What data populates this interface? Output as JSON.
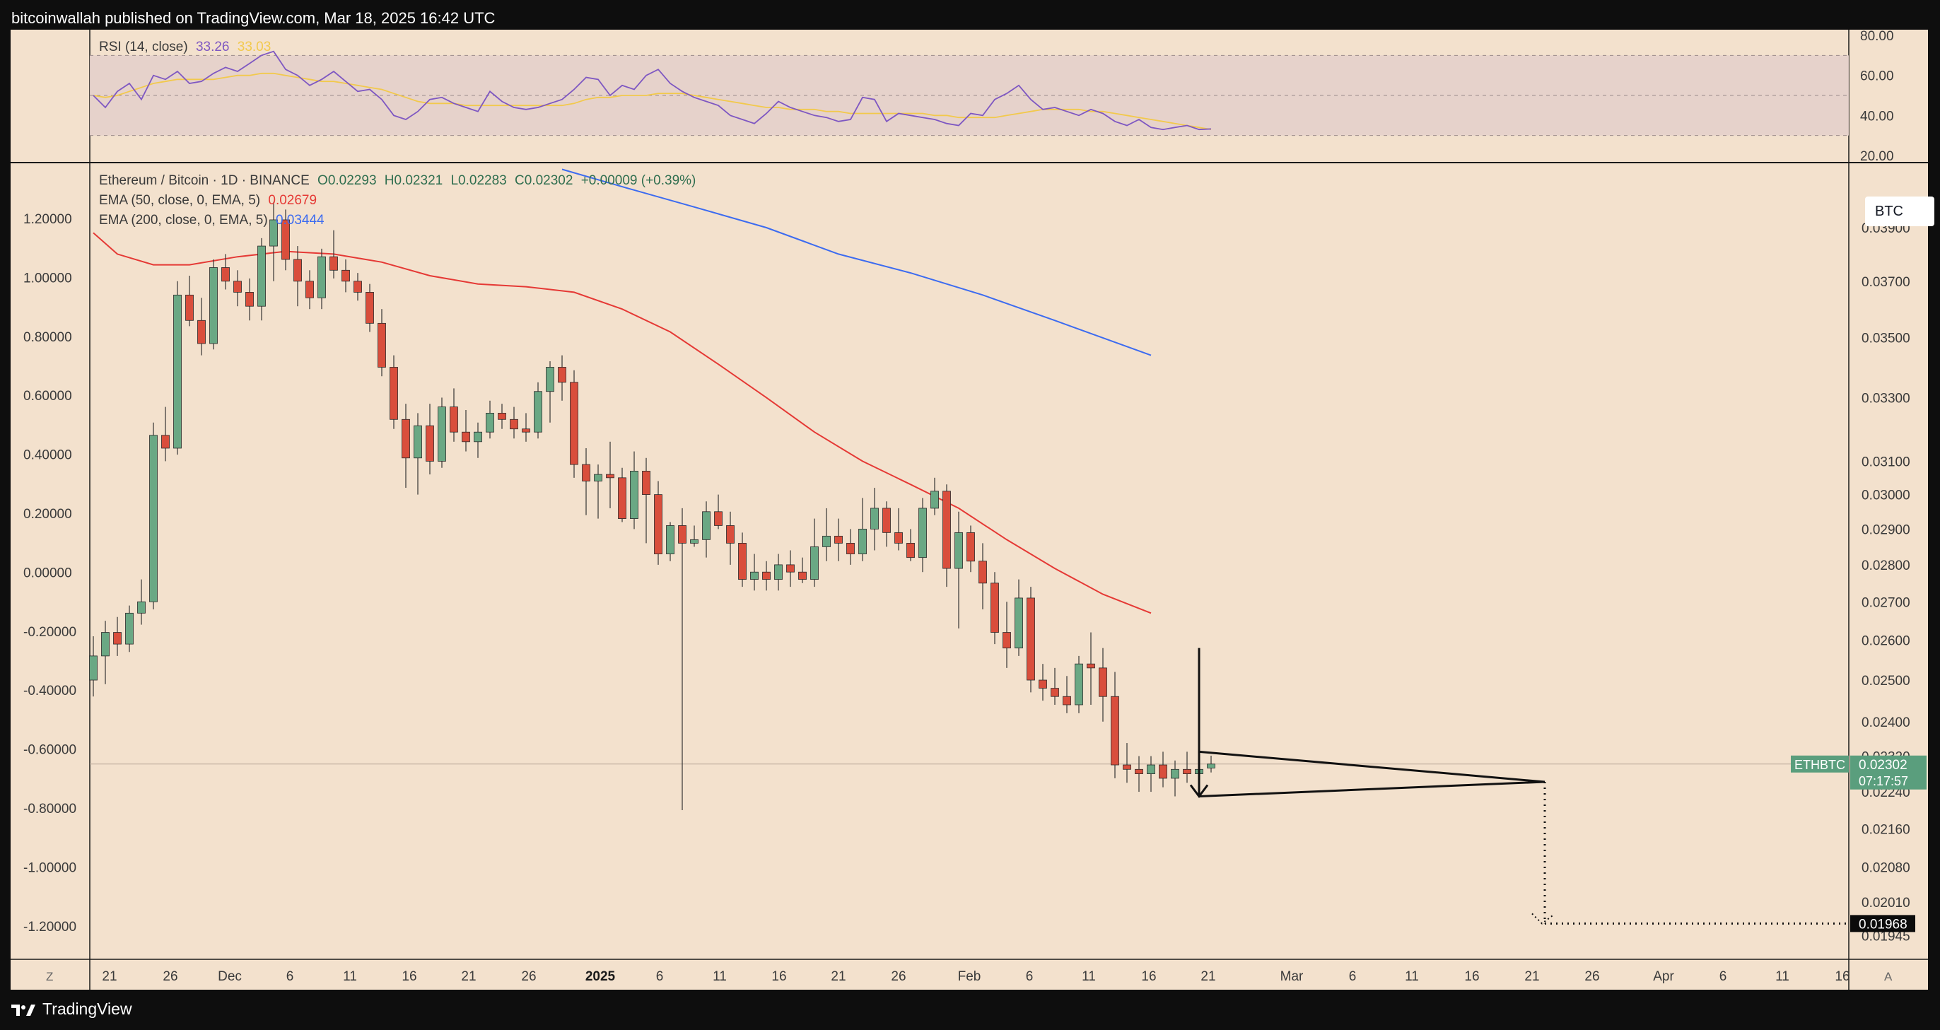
{
  "header": {
    "publisher": "bitcoinwallah published on TradingView.com, Mar 18, 2025 16:42 UTC"
  },
  "footer": {
    "brand": "TradingView"
  },
  "rsi": {
    "label": "RSI (14, close)",
    "value": "33.26",
    "ma_value": "33.03",
    "colors": {
      "rsi": "#7e57c2",
      "ma": "#f2c94c",
      "band": "#e4d0cb"
    },
    "axis_ticks": [
      "80.00",
      "60.00",
      "40.00",
      "20.00"
    ],
    "band": [
      30,
      70
    ]
  },
  "legend": {
    "symbol": "Ethereum / Bitcoin · 1D · BINANCE",
    "ohlc": {
      "o": "O0.02293",
      "h": "H0.02321",
      "l": "L0.02283",
      "c": "C0.02302",
      "chg": "+0.00009 (+0.39%)"
    },
    "ema50": {
      "label": "EMA (50, close, 0, EMA, 5)",
      "value": "0.02679",
      "color": "#e53935"
    },
    "ema200": {
      "label": "EMA (200, close, 0, EMA, 5)",
      "value": "0.03444",
      "color": "#3c6bf0"
    }
  },
  "symbol_box": "BTC",
  "price_tag": {
    "symbol": "ETHBTC",
    "price": "0.02302",
    "countdown": "07:17:57",
    "color": "#5a9e7d"
  },
  "target_tag": {
    "price": "0.01968"
  },
  "buttons": {
    "z": "Z",
    "a": "A"
  },
  "chart_data": {
    "type": "candlestick",
    "title": "Ethereum / Bitcoin · 1D · BINANCE",
    "left_axis_ticks": [
      "1.20000",
      "1.00000",
      "0.80000",
      "0.60000",
      "0.40000",
      "0.20000",
      "0.00000",
      "-0.20000",
      "-0.40000",
      "-0.60000",
      "-0.80000",
      "-1.00000",
      "-1.20000"
    ],
    "right_axis_ticks": [
      "0.03900",
      "0.03700",
      "0.03500",
      "0.03300",
      "0.03100",
      "0.03000",
      "0.02900",
      "0.02800",
      "0.02700",
      "0.02600",
      "0.02500",
      "0.02400",
      "0.02320",
      "0.02240",
      "0.02160",
      "0.02080",
      "0.02010",
      "0.01945"
    ],
    "x_ticks": [
      "21",
      "26",
      "Dec",
      "6",
      "11",
      "16",
      "21",
      "26",
      "2025",
      "6",
      "11",
      "16",
      "21",
      "26",
      "Feb",
      "6",
      "11",
      "16",
      "21",
      "Mar",
      "6",
      "11",
      "16",
      "21",
      "26",
      "Apr",
      "6",
      "11",
      "16"
    ],
    "x_bold": [
      "2025"
    ],
    "up_color": "#6aa884",
    "down_color": "#d94e3c",
    "candles": [
      [
        0.025,
        0.0261,
        0.0246,
        0.0256
      ],
      [
        0.0256,
        0.0265,
        0.0249,
        0.0262
      ],
      [
        0.0262,
        0.0266,
        0.0256,
        0.0259
      ],
      [
        0.0259,
        0.0269,
        0.0257,
        0.0267
      ],
      [
        0.0267,
        0.0276,
        0.0264,
        0.027
      ],
      [
        0.027,
        0.0322,
        0.0268,
        0.0318
      ],
      [
        0.0318,
        0.0327,
        0.031,
        0.0314
      ],
      [
        0.0314,
        0.037,
        0.0312,
        0.0365
      ],
      [
        0.0365,
        0.0372,
        0.0354,
        0.0356
      ],
      [
        0.0356,
        0.0364,
        0.0344,
        0.0348
      ],
      [
        0.0348,
        0.0378,
        0.0346,
        0.0375
      ],
      [
        0.0375,
        0.038,
        0.0367,
        0.037
      ],
      [
        0.037,
        0.0374,
        0.0361,
        0.0366
      ],
      [
        0.0366,
        0.0371,
        0.0356,
        0.0361
      ],
      [
        0.0361,
        0.0386,
        0.0356,
        0.0383
      ],
      [
        0.0383,
        0.04,
        0.037,
        0.0393
      ],
      [
        0.0393,
        0.0397,
        0.0374,
        0.0378
      ],
      [
        0.0378,
        0.0383,
        0.0361,
        0.037
      ],
      [
        0.037,
        0.0374,
        0.036,
        0.0364
      ],
      [
        0.0364,
        0.0382,
        0.036,
        0.0379
      ],
      [
        0.0379,
        0.0389,
        0.0371,
        0.0374
      ],
      [
        0.0374,
        0.0378,
        0.0366,
        0.037
      ],
      [
        0.037,
        0.0373,
        0.0363,
        0.0366
      ],
      [
        0.0366,
        0.0369,
        0.0352,
        0.0355
      ],
      [
        0.0355,
        0.036,
        0.0337,
        0.034
      ],
      [
        0.034,
        0.0344,
        0.032,
        0.0323
      ],
      [
        0.0323,
        0.0328,
        0.0302,
        0.0311
      ],
      [
        0.0311,
        0.0325,
        0.03,
        0.0321
      ],
      [
        0.0321,
        0.0328,
        0.0306,
        0.031
      ],
      [
        0.031,
        0.033,
        0.0308,
        0.0327
      ],
      [
        0.0327,
        0.0333,
        0.0316,
        0.0319
      ],
      [
        0.0319,
        0.0326,
        0.0313,
        0.0316
      ],
      [
        0.0316,
        0.0322,
        0.0311,
        0.0319
      ],
      [
        0.0319,
        0.0329,
        0.0317,
        0.0325
      ],
      [
        0.0325,
        0.0328,
        0.032,
        0.0323
      ],
      [
        0.0323,
        0.0327,
        0.0317,
        0.032
      ],
      [
        0.032,
        0.0325,
        0.0316,
        0.0319
      ],
      [
        0.0319,
        0.0335,
        0.0317,
        0.0332
      ],
      [
        0.0332,
        0.0342,
        0.0322,
        0.034
      ],
      [
        0.034,
        0.0344,
        0.0329,
        0.0335
      ],
      [
        0.0335,
        0.0339,
        0.0305,
        0.0309
      ],
      [
        0.0309,
        0.0314,
        0.0294,
        0.0304
      ],
      [
        0.0304,
        0.0309,
        0.0293,
        0.0306
      ],
      [
        0.0306,
        0.0316,
        0.0296,
        0.0305
      ],
      [
        0.0305,
        0.0308,
        0.0292,
        0.0293
      ],
      [
        0.0293,
        0.0313,
        0.029,
        0.0307
      ],
      [
        0.0307,
        0.0311,
        0.0286,
        0.03
      ],
      [
        0.03,
        0.0304,
        0.028,
        0.0283
      ],
      [
        0.0283,
        0.0292,
        0.0281,
        0.0291
      ],
      [
        0.0291,
        0.0296,
        0.022,
        0.0286
      ],
      [
        0.0286,
        0.0291,
        0.0285,
        0.0287
      ],
      [
        0.0287,
        0.0298,
        0.0282,
        0.0295
      ],
      [
        0.0295,
        0.03,
        0.029,
        0.0291
      ],
      [
        0.0291,
        0.0295,
        0.028,
        0.0286
      ],
      [
        0.0286,
        0.0289,
        0.0274,
        0.0276
      ],
      [
        0.0276,
        0.0283,
        0.0273,
        0.0278
      ],
      [
        0.0278,
        0.0281,
        0.0273,
        0.0276
      ],
      [
        0.0276,
        0.0283,
        0.0273,
        0.028
      ],
      [
        0.028,
        0.0284,
        0.0274,
        0.0278
      ],
      [
        0.0278,
        0.0282,
        0.0275,
        0.0276
      ],
      [
        0.0276,
        0.0293,
        0.0274,
        0.0285
      ],
      [
        0.0285,
        0.0296,
        0.0281,
        0.0288
      ],
      [
        0.0288,
        0.0293,
        0.0281,
        0.0286
      ],
      [
        0.0286,
        0.029,
        0.028,
        0.0283
      ],
      [
        0.0283,
        0.0299,
        0.0281,
        0.029
      ],
      [
        0.029,
        0.0302,
        0.0284,
        0.0296
      ],
      [
        0.0296,
        0.0298,
        0.0285,
        0.0289
      ],
      [
        0.0289,
        0.0296,
        0.0284,
        0.0286
      ],
      [
        0.0286,
        0.029,
        0.0281,
        0.0282
      ],
      [
        0.0282,
        0.0299,
        0.0278,
        0.0296
      ],
      [
        0.0296,
        0.0305,
        0.0294,
        0.0301
      ],
      [
        0.0301,
        0.0303,
        0.0274,
        0.0279
      ],
      [
        0.0279,
        0.0295,
        0.0263,
        0.0289
      ],
      [
        0.0289,
        0.0291,
        0.0278,
        0.0281
      ],
      [
        0.0281,
        0.0286,
        0.0268,
        0.0275
      ],
      [
        0.0275,
        0.0278,
        0.0259,
        0.0262
      ],
      [
        0.0262,
        0.027,
        0.0253,
        0.0258
      ],
      [
        0.0258,
        0.0276,
        0.0256,
        0.0271
      ],
      [
        0.0271,
        0.0274,
        0.0247,
        0.025
      ],
      [
        0.025,
        0.0254,
        0.0245,
        0.0248
      ],
      [
        0.0248,
        0.0253,
        0.0244,
        0.0246
      ],
      [
        0.0246,
        0.0251,
        0.0242,
        0.0244
      ],
      [
        0.0244,
        0.0256,
        0.0242,
        0.0254
      ],
      [
        0.0254,
        0.0262,
        0.0244,
        0.0253
      ],
      [
        0.0253,
        0.0258,
        0.024,
        0.0246
      ],
      [
        0.0246,
        0.0252,
        0.0227,
        0.023
      ],
      [
        0.023,
        0.0235,
        0.0226,
        0.0229
      ],
      [
        0.0229,
        0.0232,
        0.0224,
        0.0228
      ],
      [
        0.0228,
        0.0232,
        0.0224,
        0.023
      ],
      [
        0.023,
        0.0233,
        0.0225,
        0.0227
      ],
      [
        0.0227,
        0.0231,
        0.0223,
        0.0229
      ],
      [
        0.0229,
        0.0233,
        0.0226,
        0.0228
      ],
      [
        0.0228,
        0.0231,
        0.0225,
        0.0229
      ],
      [
        0.02293,
        0.02321,
        0.02283,
        0.02302
      ]
    ],
    "ema50": [
      [
        0,
        0.0388
      ],
      [
        2,
        0.038
      ],
      [
        5,
        0.0376
      ],
      [
        8,
        0.0376
      ],
      [
        12,
        0.0379
      ],
      [
        16,
        0.0381
      ],
      [
        20,
        0.038
      ],
      [
        24,
        0.0377
      ],
      [
        28,
        0.0372
      ],
      [
        32,
        0.0369
      ],
      [
        36,
        0.0368
      ],
      [
        40,
        0.0366
      ],
      [
        44,
        0.036
      ],
      [
        48,
        0.0352
      ],
      [
        52,
        0.0341
      ],
      [
        56,
        0.033
      ],
      [
        60,
        0.0319
      ],
      [
        64,
        0.031
      ],
      [
        68,
        0.0303
      ],
      [
        72,
        0.0296
      ],
      [
        76,
        0.0287
      ],
      [
        80,
        0.0279
      ],
      [
        84,
        0.0272
      ],
      [
        88,
        0.0267
      ]
    ],
    "ema200": [
      [
        39,
        0.0413
      ],
      [
        44,
        0.0406
      ],
      [
        50,
        0.0398
      ],
      [
        56,
        0.039
      ],
      [
        62,
        0.038
      ],
      [
        68,
        0.0373
      ],
      [
        74,
        0.0365
      ],
      [
        80,
        0.0356
      ],
      [
        88,
        0.0344
      ]
    ],
    "rsi_values": [
      50,
      44,
      52,
      56,
      48,
      60,
      58,
      62,
      56,
      57,
      61,
      64,
      62,
      66,
      70,
      72,
      63,
      60,
      55,
      58,
      62,
      57,
      52,
      53,
      48,
      40,
      38,
      42,
      48,
      49,
      46,
      44,
      42,
      52,
      47,
      44,
      43,
      44,
      46,
      48,
      53,
      59,
      58,
      50,
      55,
      53,
      60,
      63,
      56,
      52,
      49,
      47,
      45,
      40,
      38,
      36,
      41,
      47,
      44,
      42,
      40,
      39,
      37,
      38,
      49,
      48,
      37,
      41,
      40,
      39,
      38,
      36,
      35,
      41,
      40,
      48,
      51,
      55,
      48,
      43,
      44,
      42,
      40,
      43,
      41,
      37,
      35,
      38,
      34,
      33,
      34,
      35,
      33,
      33.26
    ],
    "rsi_ma": [
      50,
      49,
      50,
      52,
      54,
      56,
      57,
      58,
      58,
      58,
      58,
      59,
      60,
      60,
      61,
      61,
      60,
      59,
      58,
      57,
      57,
      56,
      55,
      54,
      53,
      51,
      49,
      47,
      46,
      46,
      46,
      45,
      45,
      45,
      45,
      45,
      45,
      45,
      45,
      45,
      46,
      48,
      49,
      49,
      50,
      50,
      50,
      51,
      51,
      51,
      50,
      49,
      48,
      47,
      46,
      45,
      44,
      44,
      43,
      43,
      43,
      42,
      42,
      41,
      41,
      41,
      41,
      41,
      41,
      41,
      40,
      40,
      39,
      39,
      39,
      39,
      40,
      41,
      42,
      43,
      43,
      43,
      43,
      42,
      42,
      41,
      40,
      39,
      38,
      37,
      36,
      35,
      34,
      33.03
    ],
    "pattern": {
      "type": "pennant",
      "target_price": 0.01968,
      "breakdown_day": 92
    }
  }
}
